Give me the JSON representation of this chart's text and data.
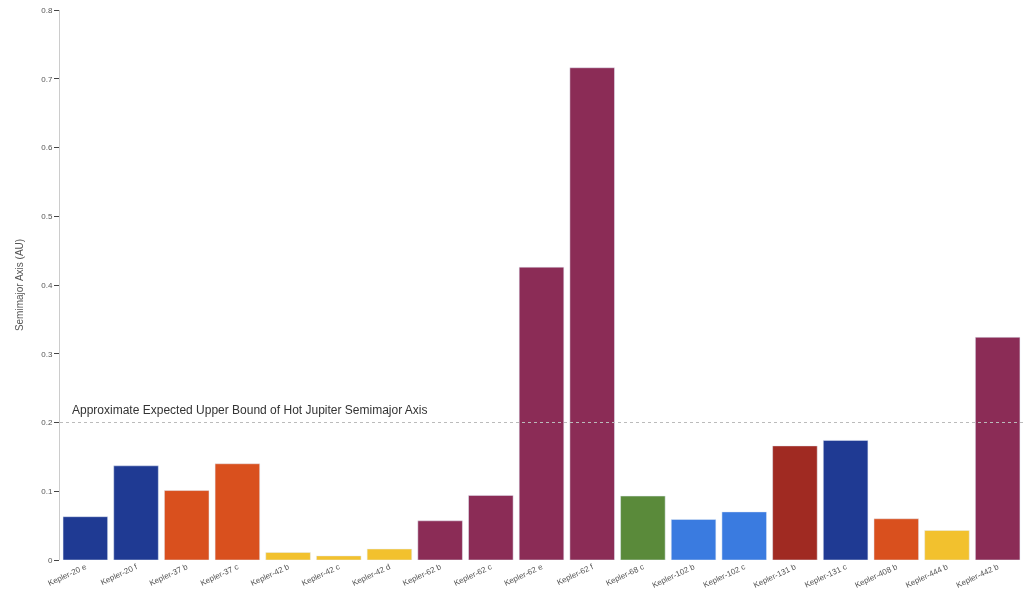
{
  "chart_data": {
    "type": "bar",
    "ylabel": "Semimajor Axis (AU)",
    "categories": [
      "Kepler-20 e",
      "Kepler-20 f",
      "Kepler-37 b",
      "Kepler-37 c",
      "Kepler-42 b",
      "Kepler-42 c",
      "Kepler-42 d",
      "Kepler-62 b",
      "Kepler-62 c",
      "Kepler-62 e",
      "Kepler-62 f",
      "Kepler-68 c",
      "Kepler-102 b",
      "Kepler-102 c",
      "Kepler-131 b",
      "Kepler-131 c",
      "Kepler-408 b",
      "Kepler-444 b",
      "Kepler-442 b"
    ],
    "values": [
      0.063,
      0.137,
      0.101,
      0.14,
      0.011,
      0.006,
      0.016,
      0.057,
      0.094,
      0.426,
      0.716,
      0.093,
      0.059,
      0.07,
      0.166,
      0.174,
      0.06,
      0.043,
      0.324
    ],
    "colors": [
      "#1f3a93",
      "#1f3a93",
      "#d9501e",
      "#d9501e",
      "#f2c12e",
      "#f2c12e",
      "#f2c12e",
      "#8b2c56",
      "#8b2c56",
      "#8b2c56",
      "#8b2c56",
      "#5a8a3a",
      "#3a7be0",
      "#3a7be0",
      "#a02a22",
      "#1f3a93",
      "#d9501e",
      "#f2c12e",
      "#8b2c56"
    ],
    "ylim": [
      0,
      0.8
    ],
    "yticks": [
      0,
      0.1,
      0.2,
      0.3,
      0.4,
      0.5,
      0.6,
      0.7,
      0.8
    ],
    "ref_lines": [
      {
        "axis": "y",
        "value": 0.2,
        "label": "Approximate Expected Upper Bound of Hot Jupiter Semimajor Axis",
        "color": "#bbbbbb",
        "line_style": "dotted"
      }
    ]
  }
}
